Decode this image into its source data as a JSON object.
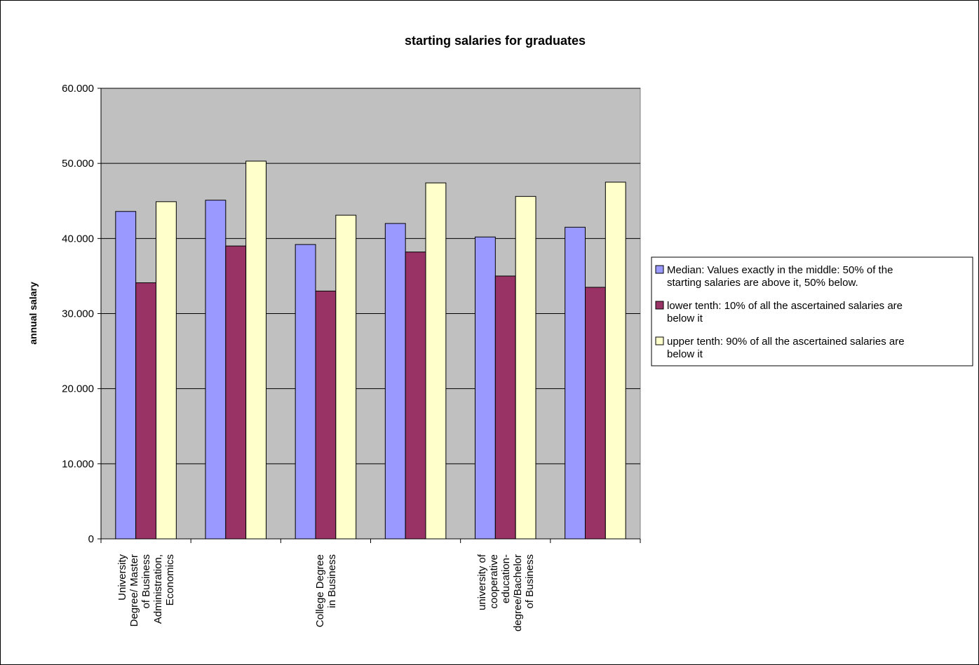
{
  "chart_data": {
    "type": "bar",
    "title": "starting salaries for graduates",
    "ylabel": "annual salary",
    "xlabel": "",
    "ylim": [
      0,
      60000
    ],
    "y_ticks": [
      0,
      10000,
      20000,
      30000,
      40000,
      50000,
      60000
    ],
    "y_tick_labels": [
      "0",
      "10.000",
      "20.000",
      "30.000",
      "40.000",
      "50.000",
      "60.000"
    ],
    "grid": true,
    "legend_position": "right",
    "categories": [
      [
        "University",
        "Degree/ Master",
        "of Business",
        "Administration,",
        "Economics"
      ],
      [],
      [
        "College Degree",
        "in Business"
      ],
      [],
      [
        "university of",
        "cooperative",
        "education-",
        "degree/Bachelor",
        "of Business"
      ],
      []
    ],
    "series": [
      {
        "name": "Median: Values exactly in the middle: 50% of the starting salaries are above it, 50% below.",
        "name_lines": [
          "Median: Values exactly in the middle: 50% of the",
          "starting salaries are above it, 50% below."
        ],
        "color": "#9999ff",
        "values": [
          43600,
          45100,
          39200,
          42000,
          40200,
          41500
        ]
      },
      {
        "name": "lower tenth: 10% of all the ascertained salaries are below it",
        "name_lines": [
          "lower tenth: 10% of all the ascertained salaries are",
          "below it"
        ],
        "color": "#993366",
        "values": [
          34100,
          39000,
          33000,
          38200,
          35000,
          33500
        ]
      },
      {
        "name": "upper tenth: 90% of all the ascertained salaries are below it",
        "name_lines": [
          "upper tenth: 90% of all the ascertained salaries are",
          "below it"
        ],
        "color": "#ffffcc",
        "values": [
          44900,
          50300,
          43100,
          47400,
          45600,
          47500
        ]
      }
    ],
    "plot_background": "#c0c0c0"
  }
}
